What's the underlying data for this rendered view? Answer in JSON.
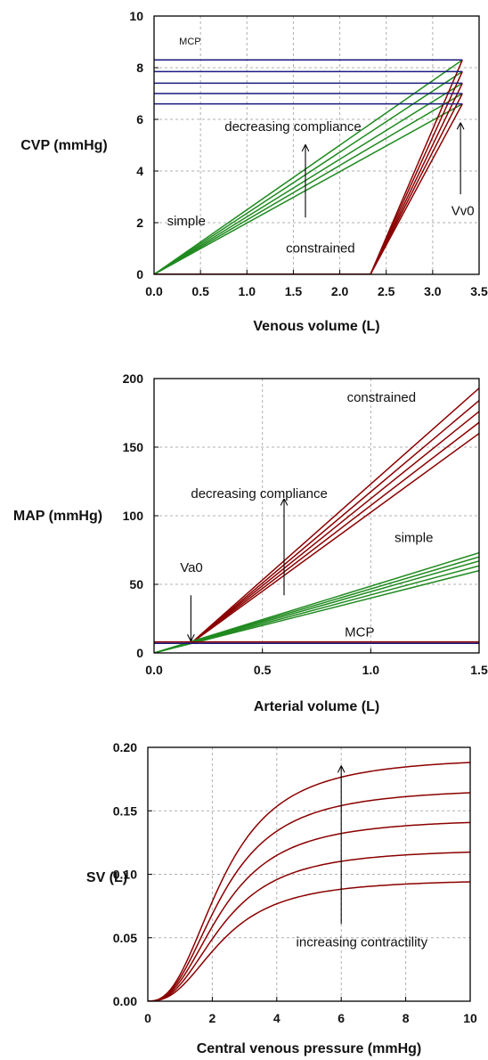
{
  "colors": {
    "red": "#8b0000",
    "green": "#1f8a1f",
    "navy": "#1a1a80",
    "arrow": "#000000"
  },
  "chart_data": [
    {
      "id": "venous",
      "type": "line",
      "xlabel": "Venous volume (L)",
      "ylabel": "CVP (mmHg)",
      "xlim": [
        0,
        3.5
      ],
      "ylim": [
        0,
        10
      ],
      "xticks": [
        "0.0",
        "0.5",
        "1.0",
        "1.5",
        "2.0",
        "2.5",
        "3.0",
        "3.5"
      ],
      "yticks": [
        "0",
        "2",
        "4",
        "6",
        "8",
        "10"
      ],
      "grid": true,
      "series": [
        {
          "group": "simple",
          "color": "green",
          "x": [
            0,
            3.32
          ],
          "y": [
            0,
            8.3
          ]
        },
        {
          "group": "simple",
          "color": "green",
          "x": [
            0,
            3.32
          ],
          "y": [
            0,
            7.85
          ]
        },
        {
          "group": "simple",
          "color": "green",
          "x": [
            0,
            3.32
          ],
          "y": [
            0,
            7.4
          ]
        },
        {
          "group": "simple",
          "color": "green",
          "x": [
            0,
            3.32
          ],
          "y": [
            0,
            7.0
          ]
        },
        {
          "group": "simple",
          "color": "green",
          "x": [
            0,
            3.32
          ],
          "y": [
            0,
            6.6
          ]
        },
        {
          "group": "constrained",
          "color": "red",
          "x": [
            0,
            2.33,
            3.32
          ],
          "y": [
            0,
            0,
            8.3
          ]
        },
        {
          "group": "constrained",
          "color": "red",
          "x": [
            0,
            2.33,
            3.32
          ],
          "y": [
            0,
            0,
            7.85
          ]
        },
        {
          "group": "constrained",
          "color": "red",
          "x": [
            0,
            2.33,
            3.32
          ],
          "y": [
            0,
            0,
            7.4
          ]
        },
        {
          "group": "constrained",
          "color": "red",
          "x": [
            0,
            2.33,
            3.32
          ],
          "y": [
            0,
            0,
            7.0
          ]
        },
        {
          "group": "constrained",
          "color": "red",
          "x": [
            0,
            2.33,
            3.32
          ],
          "y": [
            0,
            0,
            6.6
          ]
        },
        {
          "group": "MCP",
          "color": "navy",
          "x": [
            0,
            3.32
          ],
          "y": [
            8.3,
            8.3
          ]
        },
        {
          "group": "MCP",
          "color": "navy",
          "x": [
            0,
            3.32
          ],
          "y": [
            7.85,
            7.85
          ]
        },
        {
          "group": "MCP",
          "color": "navy",
          "x": [
            0,
            3.32
          ],
          "y": [
            7.4,
            7.4
          ]
        },
        {
          "group": "MCP",
          "color": "navy",
          "x": [
            0,
            3.32
          ],
          "y": [
            7.0,
            7.0
          ]
        },
        {
          "group": "MCP",
          "color": "navy",
          "x": [
            0,
            3.32
          ],
          "y": [
            6.6,
            6.6
          ]
        }
      ],
      "annotations": [
        {
          "text": "MCP",
          "x": 0.27,
          "y": 8.9,
          "cls": "ann-small"
        },
        {
          "text": "decreasing compliance",
          "x": 0.76,
          "y": 5.55,
          "cls": "ann"
        },
        {
          "text": "simple",
          "x": 0.14,
          "y": 1.9,
          "cls": "ann"
        },
        {
          "text": "constrained",
          "x": 1.42,
          "y": 0.85,
          "cls": "ann"
        },
        {
          "text": "Vv0",
          "x": 3.2,
          "y": 2.3,
          "cls": "ann"
        }
      ],
      "arrows": [
        {
          "x1": 1.63,
          "y1": 2.2,
          "x2": 1.63,
          "y2": 5.0
        },
        {
          "x1": 3.3,
          "y1": 3.1,
          "x2": 3.3,
          "y2": 5.85
        }
      ]
    },
    {
      "id": "arterial",
      "type": "line",
      "xlabel": "Arterial volume (L)",
      "ylabel": "MAP (mmHg)",
      "xlim": [
        0,
        1.5
      ],
      "ylim": [
        0,
        200
      ],
      "xticks": [
        "0.0",
        "0.5",
        "1.0",
        "1.5"
      ],
      "yticks": [
        "0",
        "50",
        "100",
        "150",
        "200"
      ],
      "grid": true,
      "series": [
        {
          "group": "constrained",
          "color": "red",
          "x": [
            0.17,
            1.5
          ],
          "y": [
            7,
            193
          ]
        },
        {
          "group": "constrained",
          "color": "red",
          "x": [
            0.17,
            1.5
          ],
          "y": [
            7,
            184
          ]
        },
        {
          "group": "constrained",
          "color": "red",
          "x": [
            0.17,
            1.5
          ],
          "y": [
            7,
            176
          ]
        },
        {
          "group": "constrained",
          "color": "red",
          "x": [
            0.17,
            1.5
          ],
          "y": [
            7,
            168
          ]
        },
        {
          "group": "constrained",
          "color": "red",
          "x": [
            0.17,
            1.5
          ],
          "y": [
            7,
            160
          ]
        },
        {
          "group": "simple",
          "color": "green",
          "x": [
            0,
            1.5
          ],
          "y": [
            0,
            73
          ]
        },
        {
          "group": "simple",
          "color": "green",
          "x": [
            0,
            1.5
          ],
          "y": [
            0,
            70
          ]
        },
        {
          "group": "simple",
          "color": "green",
          "x": [
            0,
            1.5
          ],
          "y": [
            0,
            67
          ]
        },
        {
          "group": "simple",
          "color": "green",
          "x": [
            0,
            1.5
          ],
          "y": [
            0,
            63.5
          ]
        },
        {
          "group": "simple",
          "color": "green",
          "x": [
            0,
            1.5
          ],
          "y": [
            0,
            60
          ]
        },
        {
          "group": "MCP",
          "color": "red",
          "x": [
            0,
            1.5
          ],
          "y": [
            8,
            8
          ]
        },
        {
          "group": "MCP",
          "color": "navy",
          "x": [
            0,
            1.5
          ],
          "y": [
            7,
            7
          ]
        }
      ],
      "annotations": [
        {
          "text": "constrained",
          "x": 0.89,
          "y": 183,
          "cls": "ann"
        },
        {
          "text": "decreasing compliance",
          "x": 0.17,
          "y": 113,
          "cls": "ann"
        },
        {
          "text": "simple",
          "x": 1.11,
          "y": 81,
          "cls": "ann"
        },
        {
          "text": "Va0",
          "x": 0.12,
          "y": 59,
          "cls": "ann"
        },
        {
          "text": "MCP",
          "x": 0.88,
          "y": 12,
          "cls": "ann"
        }
      ],
      "arrows": [
        {
          "x1": 0.6,
          "y1": 42,
          "x2": 0.6,
          "y2": 112
        },
        {
          "x1": 0.17,
          "y1": 42,
          "x2": 0.17,
          "y2": 9
        }
      ]
    },
    {
      "id": "frank-starling",
      "type": "line",
      "xlabel": "Central venous pressure (mmHg)",
      "ylabel": "SV (L)",
      "xlim": [
        0,
        10
      ],
      "ylim": [
        0,
        0.2
      ],
      "xticks": [
        "0",
        "2",
        "4",
        "6",
        "8",
        "10"
      ],
      "yticks": [
        "0.00",
        "0.05",
        "0.10",
        "0.15",
        "0.20"
      ],
      "grid": true,
      "curve": {
        "k": 0.43,
        "n": 2.5
      },
      "series": [
        {
          "group": "contractility",
          "color": "red",
          "smax": 0.193
        },
        {
          "group": "contractility",
          "color": "red",
          "smax": 0.1685
        },
        {
          "group": "contractility",
          "color": "red",
          "smax": 0.1445
        },
        {
          "group": "contractility",
          "color": "red",
          "smax": 0.1205
        },
        {
          "group": "contractility",
          "color": "red",
          "smax": 0.0965
        }
      ],
      "annotations": [
        {
          "text": "increasing contractility",
          "x": 4.6,
          "y": 0.043,
          "cls": "ann"
        }
      ],
      "arrows": [
        {
          "x1": 6.0,
          "y1": 0.061,
          "x2": 6.0,
          "y2": 0.185
        }
      ]
    }
  ]
}
